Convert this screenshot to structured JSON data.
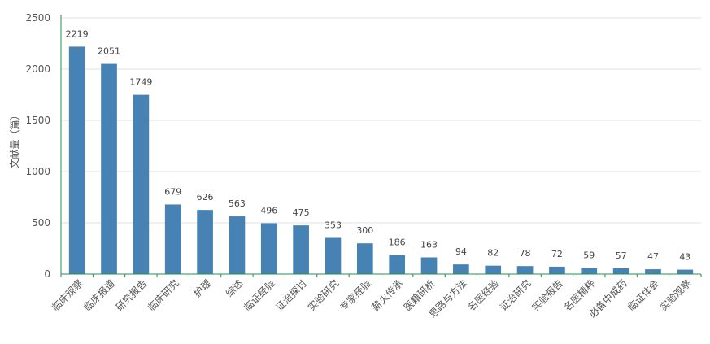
{
  "chart_data": {
    "type": "bar",
    "title": "",
    "xlabel": "",
    "ylabel": "文献量（篇）",
    "ylim": [
      0,
      2500
    ],
    "yticks": [
      0,
      500,
      1000,
      1500,
      2000,
      2500
    ],
    "grid": true,
    "bar_color": "#4682b4",
    "grid_color": "#e0e0e0",
    "axis_color": "#2e8b57",
    "categories": [
      "临床观察",
      "临床报道",
      "研究报告",
      "临床研究",
      "护理",
      "综述",
      "临证经验",
      "证治探讨",
      "实验研究",
      "专家经验",
      "薪火传承",
      "医籍研析",
      "思路与方法",
      "名医经验",
      "证治研究",
      "实验报告",
      "名医精粹",
      "必备中成药",
      "临证体会",
      "实验观察"
    ],
    "values": [
      2219,
      2051,
      1749,
      679,
      626,
      563,
      496,
      475,
      353,
      300,
      186,
      163,
      94,
      82,
      78,
      72,
      59,
      57,
      47,
      43
    ]
  }
}
